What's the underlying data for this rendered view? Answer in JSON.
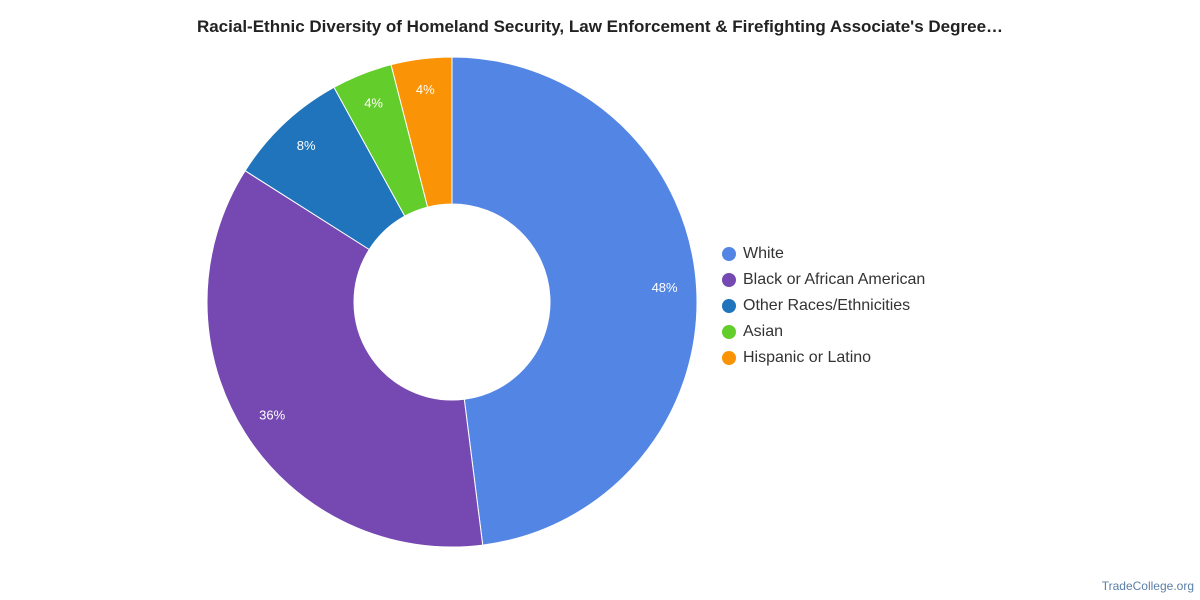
{
  "chart_data": {
    "type": "pie",
    "variant": "donut",
    "title": "Racial-Ethnic Diversity of Homeland Security, Law Enforcement & Firefighting Associate's Degree…",
    "categories": [
      "White",
      "Black or African American",
      "Other Races/Ethnicities",
      "Asian",
      "Hispanic or Latino"
    ],
    "values": [
      48,
      36,
      8,
      4,
      4
    ],
    "labels": [
      "48%",
      "36%",
      "8%",
      "4%",
      "4%"
    ],
    "colors": [
      "#5386e4",
      "#7549b1",
      "#1f74bb",
      "#63cd2c",
      "#fa9305"
    ],
    "legend_position": "right"
  },
  "footer": {
    "source": "TradeCollege.org"
  }
}
